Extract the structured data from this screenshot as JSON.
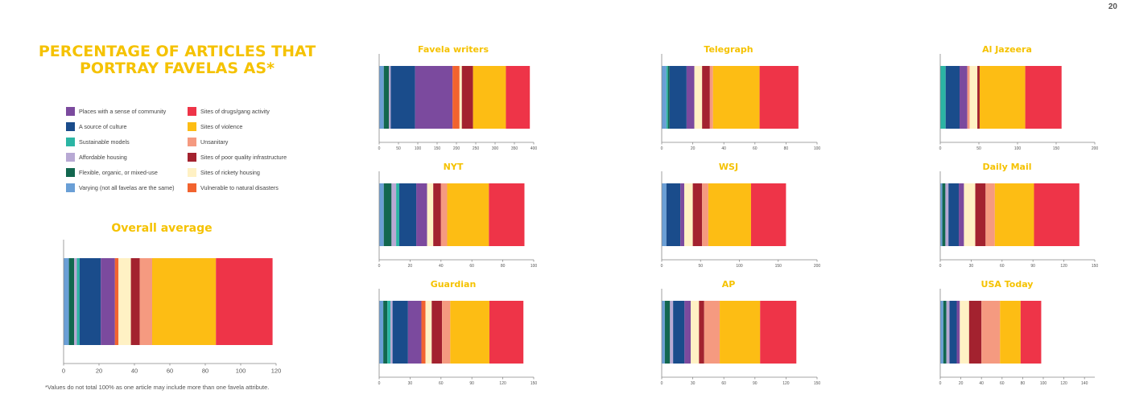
{
  "page_number": "20",
  "main_title": "PERCENTAGE OF ARTICLES THAT PORTRAY FAVELAS AS*",
  "footnote": "*Values do not total 100% as one article may include more than one favela attribute.",
  "legend": [
    {
      "label": "Places with a sense of community",
      "color": "#7b4a9e"
    },
    {
      "label": "A source of culture",
      "color": "#1a4c8b"
    },
    {
      "label": "Sustainable models",
      "color": "#2bb5a4"
    },
    {
      "label": "Affordable housing",
      "color": "#b8a9d4"
    },
    {
      "label": "Flexible, organic, or mixed-use",
      "color": "#12674f"
    },
    {
      "label": "Varying (not all favelas are the same)",
      "color": "#6a9fd6"
    },
    {
      "label": "Sites of drugs/gang activity",
      "color": "#ee3448"
    },
    {
      "label": "Sites of violence",
      "color": "#fdbd14"
    },
    {
      "label": "Unsanitary",
      "color": "#f59a80"
    },
    {
      "label": "Sites of poor quality infrastructure",
      "color": "#a3222f"
    },
    {
      "label": "Sites of rickety housing",
      "color": "#fff1c4"
    },
    {
      "label": "Vulnerable to natural disasters",
      "color": "#f2632f"
    }
  ],
  "chart_data": [
    {
      "title": "Overall average",
      "type": "stacked-bar",
      "xlim": [
        0,
        120
      ],
      "ticks": [
        "0",
        "20",
        "40",
        "60",
        "80",
        "100",
        "120"
      ],
      "segments": [
        {
          "series": "Varying (not all favelas are the same)",
          "value": 3
        },
        {
          "series": "Flexible, organic, or mixed-use",
          "value": 3
        },
        {
          "series": "Affordable housing",
          "value": 1.5
        },
        {
          "series": "Sustainable models",
          "value": 1.5
        },
        {
          "series": "A source of culture",
          "value": 12
        },
        {
          "series": "Places with a sense of community",
          "value": 8
        },
        {
          "series": "Vulnerable to natural disasters",
          "value": 2
        },
        {
          "series": "Sites of rickety housing",
          "value": 7
        },
        {
          "series": "Sites of poor quality infrastructure",
          "value": 5
        },
        {
          "series": "Unsanitary",
          "value": 7
        },
        {
          "series": "Sites of violence",
          "value": 36
        },
        {
          "series": "Sites of drugs/gang activity",
          "value": 32
        }
      ]
    },
    {
      "title": "Favela writers",
      "type": "stacked-bar",
      "xlim": [
        0,
        400
      ],
      "ticks": [
        "0",
        "50",
        "100",
        "150",
        "200",
        "250",
        "300",
        "350",
        "400"
      ],
      "segments": [
        {
          "series": "Varying (not all favelas are the same)",
          "value": 12
        },
        {
          "series": "Flexible, organic, or mixed-use",
          "value": 13
        },
        {
          "series": "Affordable housing",
          "value": 5
        },
        {
          "series": "A source of culture",
          "value": 63
        },
        {
          "series": "Places with a sense of community",
          "value": 97
        },
        {
          "series": "Vulnerable to natural disasters",
          "value": 18
        },
        {
          "series": "Sites of rickety housing",
          "value": 6
        },
        {
          "series": "Sites of poor quality infrastructure",
          "value": 29
        },
        {
          "series": "Sites of violence",
          "value": 85
        },
        {
          "series": "Sites of drugs/gang activity",
          "value": 62
        }
      ]
    },
    {
      "title": "Telegraph",
      "type": "stacked-bar",
      "xlim": [
        0,
        100
      ],
      "ticks": [
        "0",
        "20",
        "40",
        "60",
        "80",
        "100"
      ],
      "segments": [
        {
          "series": "Varying (not all favelas are the same)",
          "value": 3
        },
        {
          "series": "Sustainable models",
          "value": 1
        },
        {
          "series": "Flexible, organic, or mixed-use",
          "value": 1
        },
        {
          "series": "A source of culture",
          "value": 11
        },
        {
          "series": "Places with a sense of community",
          "value": 5
        },
        {
          "series": "Sites of rickety housing",
          "value": 5
        },
        {
          "series": "Sites of poor quality infrastructure",
          "value": 5
        },
        {
          "series": "Unsanitary",
          "value": 2
        },
        {
          "series": "Sites of violence",
          "value": 30
        },
        {
          "series": "Sites of drugs/gang activity",
          "value": 25
        }
      ]
    },
    {
      "title": "Al Jazeera",
      "type": "stacked-bar",
      "xlim": [
        0,
        200
      ],
      "ticks": [
        "0",
        "50",
        "100",
        "150",
        "200"
      ],
      "segments": [
        {
          "series": "Sustainable models",
          "value": 7
        },
        {
          "series": "A source of culture",
          "value": 18
        },
        {
          "series": "Places with a sense of community",
          "value": 10
        },
        {
          "series": "Unsanitary",
          "value": 3
        },
        {
          "series": "Sites of rickety housing",
          "value": 10
        },
        {
          "series": "Sites of poor quality infrastructure",
          "value": 3
        },
        {
          "series": "Sites of violence",
          "value": 59
        },
        {
          "series": "Sites of drugs/gang activity",
          "value": 47
        }
      ]
    },
    {
      "title": "NYT",
      "type": "stacked-bar",
      "xlim": [
        0,
        100
      ],
      "ticks": [
        "0",
        "20",
        "40",
        "60",
        "80",
        "100"
      ],
      "segments": [
        {
          "series": "Varying (not all favelas are the same)",
          "value": 3
        },
        {
          "series": "Flexible, organic, or mixed-use",
          "value": 5
        },
        {
          "series": "Affordable housing",
          "value": 3
        },
        {
          "series": "Sustainable models",
          "value": 2
        },
        {
          "series": "A source of culture",
          "value": 11
        },
        {
          "series": "Places with a sense of community",
          "value": 7
        },
        {
          "series": "Sites of rickety housing",
          "value": 4
        },
        {
          "series": "Sites of poor quality infrastructure",
          "value": 5
        },
        {
          "series": "Unsanitary",
          "value": 4
        },
        {
          "series": "Sites of violence",
          "value": 27
        },
        {
          "series": "Sites of drugs/gang activity",
          "value": 23
        }
      ]
    },
    {
      "title": "WSJ",
      "type": "stacked-bar",
      "xlim": [
        0,
        200
      ],
      "ticks": [
        "0",
        "50",
        "100",
        "150",
        "200"
      ],
      "segments": [
        {
          "series": "Varying (not all favelas are the same)",
          "value": 6
        },
        {
          "series": "A source of culture",
          "value": 18
        },
        {
          "series": "Places with a sense of community",
          "value": 5
        },
        {
          "series": "Sites of rickety housing",
          "value": 11
        },
        {
          "series": "Sites of poor quality infrastructure",
          "value": 12
        },
        {
          "series": "Unsanitary",
          "value": 8
        },
        {
          "series": "Sites of violence",
          "value": 55
        },
        {
          "series": "Sites of drugs/gang activity",
          "value": 45
        }
      ]
    },
    {
      "title": "Daily Mail",
      "type": "stacked-bar",
      "xlim": [
        0,
        150
      ],
      "ticks": [
        "0",
        "30",
        "60",
        "90",
        "120",
        "150"
      ],
      "segments": [
        {
          "series": "Varying (not all favelas are the same)",
          "value": 2
        },
        {
          "series": "Flexible, organic, or mixed-use",
          "value": 3
        },
        {
          "series": "Affordable housing",
          "value": 3
        },
        {
          "series": "A source of culture",
          "value": 10
        },
        {
          "series": "Places with a sense of community",
          "value": 5
        },
        {
          "series": "Sites of rickety housing",
          "value": 11
        },
        {
          "series": "Sites of poor quality infrastructure",
          "value": 10
        },
        {
          "series": "Unsanitary",
          "value": 9
        },
        {
          "series": "Sites of violence",
          "value": 38
        },
        {
          "series": "Sites of drugs/gang activity",
          "value": 44
        }
      ]
    },
    {
      "title": "Guardian",
      "type": "stacked-bar",
      "xlim": [
        0,
        150
      ],
      "ticks": [
        "0",
        "30",
        "60",
        "90",
        "120",
        "150"
      ],
      "segments": [
        {
          "series": "Varying (not all favelas are the same)",
          "value": 4
        },
        {
          "series": "Flexible, organic, or mixed-use",
          "value": 4
        },
        {
          "series": "Sustainable models",
          "value": 3
        },
        {
          "series": "Affordable housing",
          "value": 2
        },
        {
          "series": "A source of culture",
          "value": 15
        },
        {
          "series": "Places with a sense of community",
          "value": 13
        },
        {
          "series": "Vulnerable to natural disasters",
          "value": 4
        },
        {
          "series": "Sites of rickety housing",
          "value": 6
        },
        {
          "series": "Sites of poor quality infrastructure",
          "value": 10
        },
        {
          "series": "Unsanitary",
          "value": 8
        },
        {
          "series": "Sites of violence",
          "value": 38
        },
        {
          "series": "Sites of drugs/gang activity",
          "value": 33
        }
      ]
    },
    {
      "title": "AP",
      "type": "stacked-bar",
      "xlim": [
        0,
        150
      ],
      "ticks": [
        "0",
        "30",
        "60",
        "90",
        "120",
        "150"
      ],
      "segments": [
        {
          "series": "Varying (not all favelas are the same)",
          "value": 3
        },
        {
          "series": "Flexible, organic, or mixed-use",
          "value": 5
        },
        {
          "series": "Affordable housing",
          "value": 3
        },
        {
          "series": "A source of culture",
          "value": 11
        },
        {
          "series": "Places with a sense of community",
          "value": 6
        },
        {
          "series": "Sites of rickety housing",
          "value": 8
        },
        {
          "series": "Sites of poor quality infrastructure",
          "value": 5
        },
        {
          "series": "Unsanitary",
          "value": 15
        },
        {
          "series": "Sites of violence",
          "value": 39
        },
        {
          "series": "Sites of drugs/gang activity",
          "value": 35
        }
      ]
    },
    {
      "title": "USA Today",
      "type": "stacked-bar",
      "xlim": [
        0,
        150
      ],
      "ticks": [
        "0",
        "20",
        "40",
        "60",
        "80",
        "100",
        "120",
        "140"
      ],
      "segments": [
        {
          "series": "Varying (not all favelas are the same)",
          "value": 3
        },
        {
          "series": "Flexible, organic, or mixed-use",
          "value": 3
        },
        {
          "series": "Affordable housing",
          "value": 3
        },
        {
          "series": "A source of culture",
          "value": 7
        },
        {
          "series": "Places with a sense of community",
          "value": 3
        },
        {
          "series": "Sites of rickety housing",
          "value": 9
        },
        {
          "series": "Sites of poor quality infrastructure",
          "value": 12
        },
        {
          "series": "Unsanitary",
          "value": 18
        },
        {
          "series": "Sites of violence",
          "value": 20
        },
        {
          "series": "Sites of drugs/gang activity",
          "value": 20
        }
      ]
    }
  ]
}
